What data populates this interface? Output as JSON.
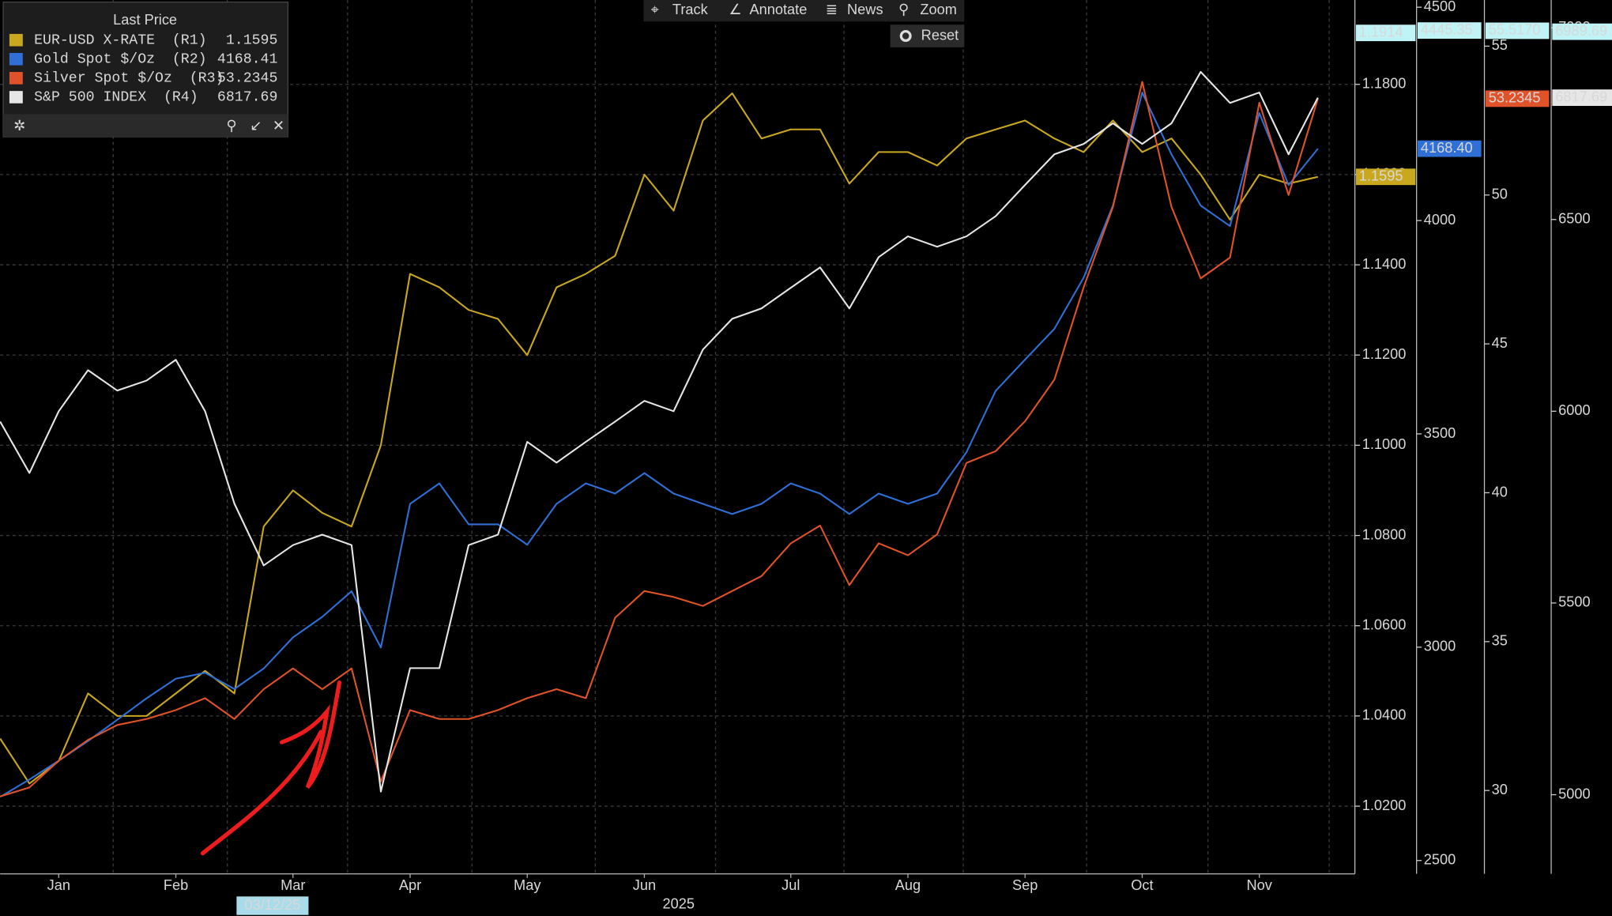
{
  "chart_data": {
    "type": "line",
    "legend_title": "Last Price",
    "toolbar": [
      "Track",
      "Annotate",
      "News",
      "Zoom",
      "Reset"
    ],
    "annotations": [
      "03/12/25",
      "2025"
    ],
    "categories": [
      null,
      null,
      "Jan",
      null,
      null,
      null,
      "Feb",
      null,
      null,
      null,
      "Mar",
      null,
      null,
      null,
      "Apr",
      null,
      null,
      null,
      "May",
      null,
      null,
      null,
      "Jun",
      null,
      null,
      null,
      null,
      "Jul",
      null,
      null,
      null,
      "Aug",
      null,
      null,
      null,
      "Sep",
      null,
      null,
      null,
      "Oct",
      null,
      null,
      null,
      "Nov",
      null,
      null
    ],
    "grid": true,
    "ylim": [
      1.005,
      1.1987
    ],
    "yticks": [
      {
        "value": 1.02,
        "label": "1.0200"
      },
      {
        "value": 1.04,
        "label": "1.0400"
      },
      {
        "value": 1.06,
        "label": "1.0600"
      },
      {
        "value": 1.08,
        "label": "1.0800"
      },
      {
        "value": 1.1,
        "label": "1.1000"
      },
      {
        "value": 1.12,
        "label": "1.1200"
      },
      {
        "value": 1.14,
        "label": "1.1400"
      },
      {
        "value": 1.16,
        "label": "1.1600"
      },
      {
        "value": 1.18,
        "label": "1.1800"
      }
    ],
    "y2lim": [
      2468.7,
      4516.9
    ],
    "y2ticks": [
      2500,
      3000,
      3500,
      4000,
      4500
    ],
    "y3lim": [
      27.2,
      56.55
    ],
    "y3ticks": [
      30,
      35,
      40,
      45,
      50,
      55
    ],
    "y4lim": [
      4793.6,
      7072.4
    ],
    "y4ticks": [
      5000,
      5500,
      6000,
      6500,
      7000
    ],
    "series": [
      {
        "name": "EUR-USD X-RATE  (R1)",
        "color": "#c9a820",
        "axis": "y",
        "values": [
          1.035,
          1.025,
          1.03,
          1.045,
          1.04,
          1.04,
          1.045,
          1.05,
          1.045,
          1.082,
          1.09,
          1.085,
          1.082,
          1.1,
          1.138,
          1.135,
          1.13,
          1.128,
          1.12,
          1.135,
          1.138,
          1.142,
          1.16,
          1.152,
          1.172,
          1.178,
          1.168,
          1.17,
          1.17,
          1.158,
          1.165,
          1.165,
          1.162,
          1.168,
          1.17,
          1.172,
          1.168,
          1.165,
          1.172,
          1.165,
          1.168,
          1.16,
          1.15,
          1.16,
          1.158,
          1.1595
        ],
        "high": 1.1914,
        "last": 1.1595
      },
      {
        "name": "Gold Spot $/Oz  (R2)",
        "color": "#2f6fd6",
        "axis": "y2",
        "values": [
          2649,
          2690,
          2734,
          2780,
          2830,
          2880,
          2926,
          2940,
          2902,
          2950,
          3023,
          3071,
          3131,
          2999,
          3336,
          3384,
          3288,
          3288,
          3240,
          3336,
          3384,
          3360,
          3408,
          3360,
          3336,
          3312,
          3336,
          3384,
          3360,
          3312,
          3360,
          3336,
          3360,
          3457,
          3601,
          3674,
          3746,
          3866,
          4035,
          4300,
          4155,
          4035,
          3987,
          4252,
          4083,
          4168.41
        ],
        "high": 4445.35,
        "last": {
          "value": 4168.4,
          "label": "4168.40"
        }
      },
      {
        "name": "Silver Spot $/Oz  (R3)",
        "color": "#e0532a",
        "axis": "y3",
        "values": [
          29.8,
          30.1,
          31.0,
          31.7,
          32.2,
          32.4,
          32.7,
          33.1,
          32.4,
          33.4,
          34.1,
          33.4,
          34.1,
          30.3,
          32.7,
          32.4,
          32.4,
          32.7,
          33.1,
          33.4,
          33.1,
          35.8,
          36.7,
          36.5,
          36.2,
          36.7,
          37.2,
          38.3,
          38.9,
          36.9,
          38.3,
          37.9,
          38.6,
          41.0,
          41.4,
          42.4,
          43.8,
          46.9,
          49.6,
          53.8,
          49.6,
          47.2,
          47.9,
          53.1,
          50.0,
          53.2345
        ],
        "high": {
          "value": 55.517,
          "label": "55.5170"
        },
        "last": 53.2345
      },
      {
        "name": "S&P 500 INDEX  (R4)",
        "color": "#e6e6e6",
        "axis": "y4",
        "values": [
          5973,
          5839,
          6000,
          6107,
          6054,
          6080,
          6134,
          6000,
          5759,
          5598,
          5651,
          5678,
          5651,
          5008,
          5330,
          5330,
          5651,
          5678,
          5920,
          5866,
          5920,
          5973,
          6027,
          6000,
          6161,
          6241,
          6268,
          6322,
          6375,
          6268,
          6402,
          6456,
          6429,
          6456,
          6509,
          6590,
          6670,
          6697,
          6751,
          6697,
          6751,
          6885,
          6804,
          6831,
          6670,
          6817.69
        ],
        "high": 6989.69,
        "last": 6817.69
      }
    ]
  }
}
